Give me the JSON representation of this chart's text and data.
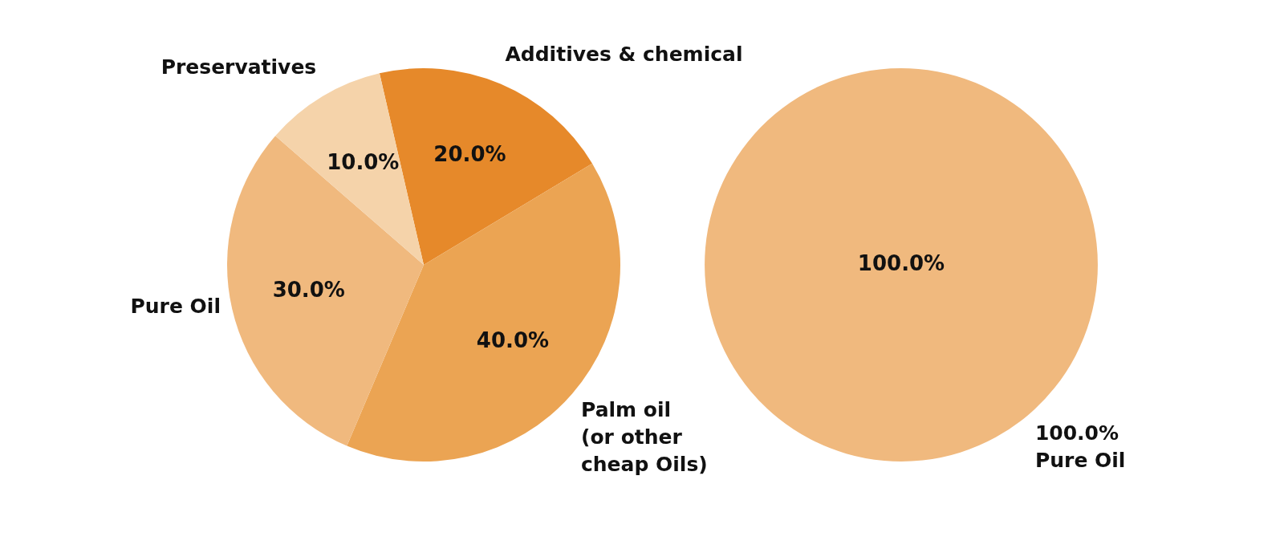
{
  "chart_data": [
    {
      "type": "pie",
      "categories": [
        "Additives & chemical",
        "Palm oil (or other cheap Oils)",
        "Pure Oil",
        "Preservatives"
      ],
      "values": [
        20,
        40,
        30,
        10
      ],
      "colors": [
        "#e6892a",
        "#eba453",
        "#f0b97e",
        "#f5d3aa"
      ],
      "value_labels": [
        "20.0%",
        "40.0%",
        "30.0%",
        "10.0%"
      ],
      "legend": false
    },
    {
      "type": "pie",
      "categories": [
        "Pure Oil"
      ],
      "values": [
        100
      ],
      "colors": [
        "#f0b97e"
      ],
      "value_labels": [
        "100.0%"
      ],
      "annotations": [
        "100.0%"
      ],
      "legend": false
    }
  ]
}
